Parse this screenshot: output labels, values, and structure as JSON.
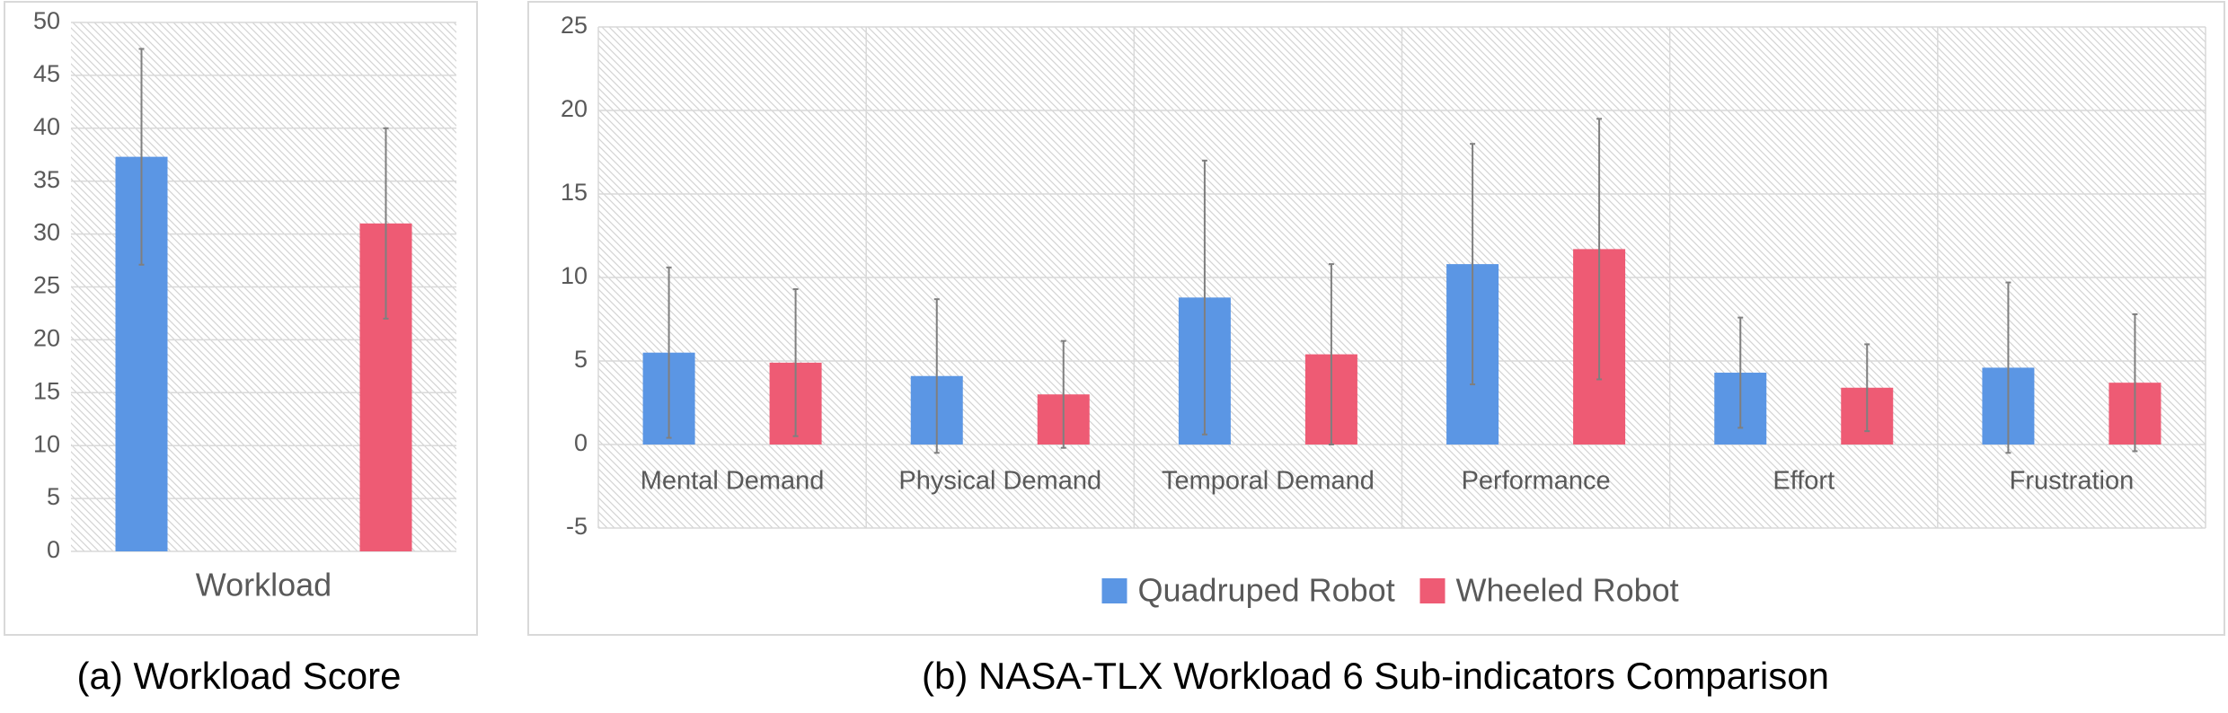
{
  "chart_data": [
    {
      "type": "bar",
      "title": "(a) Workload Score",
      "categories": [
        "Workload"
      ],
      "series": [
        {
          "color": "#5b96e4",
          "values": [
            37.3
          ],
          "errors": [
            10.2
          ]
        },
        {
          "color": "#ee5b74",
          "values": [
            31
          ],
          "errors": [
            9
          ]
        }
      ],
      "ylim": [
        0,
        50
      ],
      "yticks": [
        0,
        5,
        10,
        15,
        20,
        25,
        30,
        35,
        40,
        45,
        50
      ],
      "grid": true
    },
    {
      "type": "bar",
      "title": "(b) NASA-TLX Workload 6 Sub-indicators Comparison",
      "categories": [
        "Mental Demand",
        "Physical Demand",
        "Temporal Demand",
        "Performance",
        "Effort",
        "Frustration"
      ],
      "series": [
        {
          "name": "Quadruped Robot",
          "color": "#5b96e4",
          "values": [
            5.5,
            4.1,
            8.8,
            10.8,
            4.3,
            4.6
          ],
          "errors": [
            5.1,
            4.6,
            8.2,
            7.2,
            3.3,
            5.1
          ]
        },
        {
          "name": "Wheeled Robot",
          "color": "#ee5b74",
          "values": [
            4.9,
            3.0,
            5.4,
            11.7,
            3.4,
            3.7
          ],
          "errors": [
            4.4,
            3.2,
            5.4,
            7.8,
            2.6,
            4.1
          ]
        }
      ],
      "ylim": [
        -5,
        25
      ],
      "yticks": [
        -5,
        0,
        5,
        10,
        15,
        20,
        25
      ],
      "grid": true,
      "legend": "bottom"
    }
  ]
}
